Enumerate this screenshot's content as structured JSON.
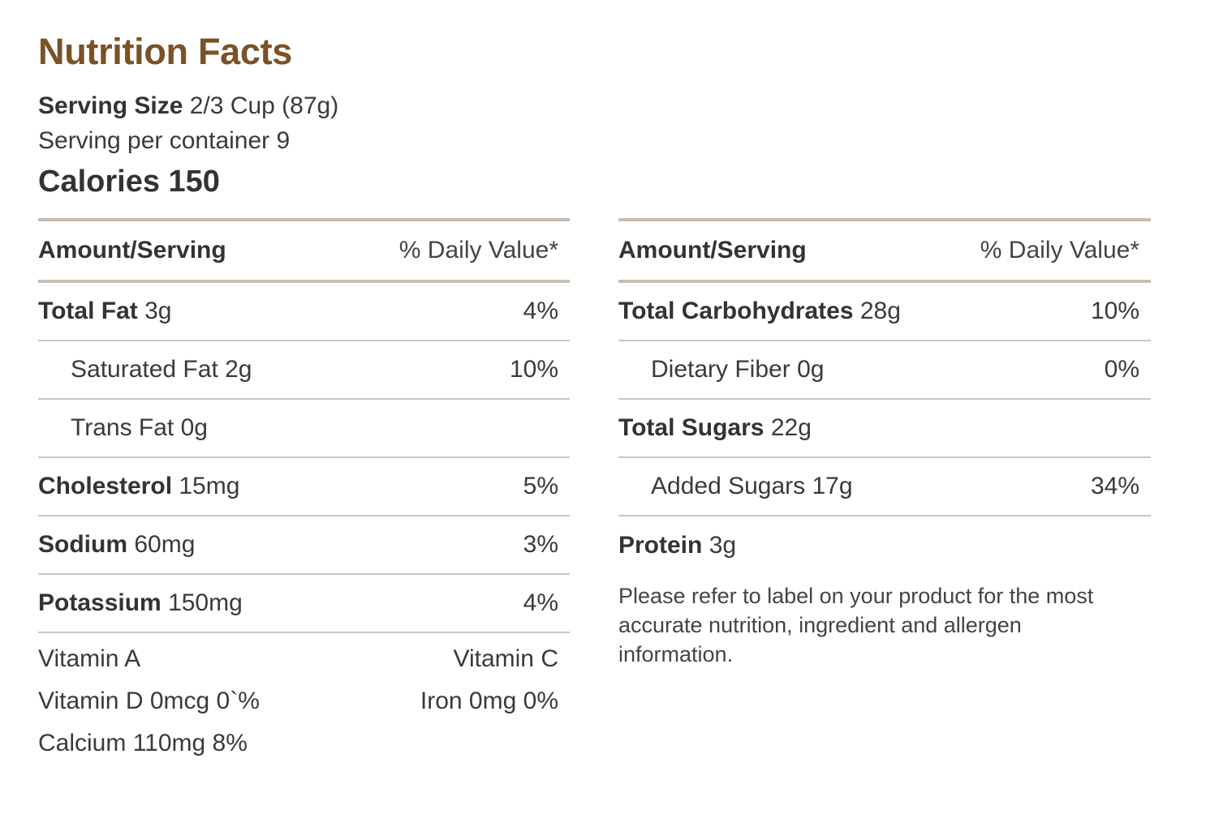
{
  "title": "Nutrition Facts",
  "serving": {
    "size_label": "Serving Size",
    "size_value": "2/3 Cup (87g)",
    "per_container": "Serving per container 9"
  },
  "calories": "Calories 150",
  "table_header": {
    "amount": "Amount/Serving",
    "daily_value": "% Daily Value*"
  },
  "left_rows": [
    {
      "name": "Total Fat",
      "amount": "3g",
      "dv": "4%",
      "bold": true
    },
    {
      "name": "Saturated Fat",
      "amount": "2g",
      "dv": "10%",
      "bold": false
    },
    {
      "name": "Trans Fat",
      "amount": "0g",
      "dv": "",
      "bold": false
    },
    {
      "name": "Cholesterol",
      "amount": "15mg",
      "dv": "5%",
      "bold": true
    },
    {
      "name": "Sodium",
      "amount": "60mg",
      "dv": "3%",
      "bold": true
    },
    {
      "name": "Potassium",
      "amount": "150mg",
      "dv": "4%",
      "bold": true
    }
  ],
  "vitamins": [
    {
      "left": "Vitamin A",
      "right": "Vitamin C"
    },
    {
      "left": "Vitamin D 0mcg 0`%",
      "right": "Iron 0mg 0%"
    },
    {
      "left": "Calcium 110mg 8%",
      "right": ""
    }
  ],
  "right_rows": [
    {
      "name": "Total Carbohydrates",
      "amount": "28g",
      "dv": "10%",
      "bold": true
    },
    {
      "name": "Dietary Fiber",
      "amount": "0g",
      "dv": "0%",
      "bold": false
    },
    {
      "name": "Total Sugars",
      "amount": "22g",
      "dv": "",
      "bold": true
    },
    {
      "name": "Added Sugars",
      "amount": "17g",
      "dv": "34%",
      "bold": false
    },
    {
      "name": "Protein",
      "amount": "3g",
      "dv": "",
      "bold": true
    }
  ],
  "note": "Please refer to label on your product for the most accurate nutrition, ingredient and allergen information."
}
